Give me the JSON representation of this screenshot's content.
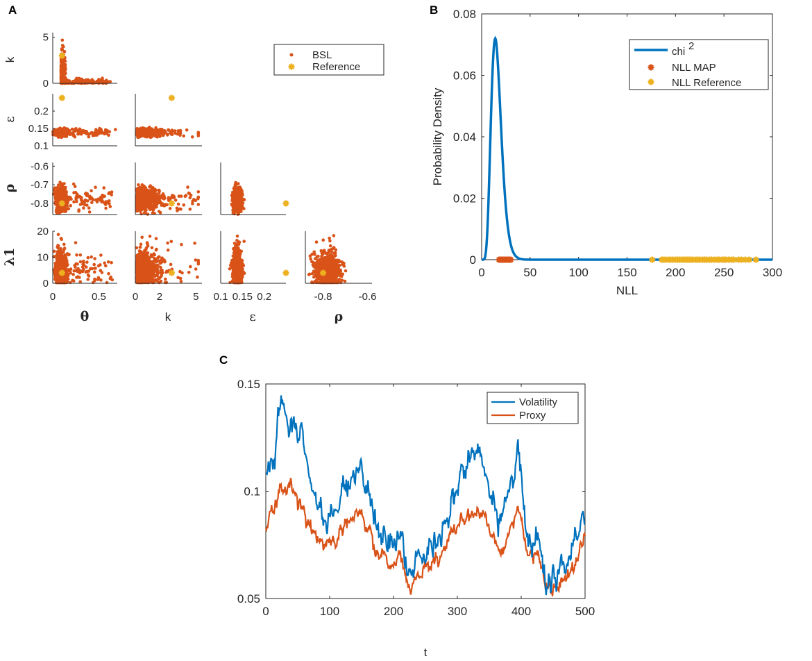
{
  "colors": {
    "blue": "#0072BD",
    "orange": "#D95319",
    "yellow": "#EDB120",
    "axis": "#262626"
  },
  "chart_data": [
    {
      "panel": "A",
      "type": "scatter",
      "title": "",
      "legend": [
        "BSL",
        "Reference"
      ],
      "legend_position": "top-right",
      "variables": [
        "θ",
        "k",
        "ε",
        "ρ",
        "λ1"
      ],
      "row_labels": [
        "k",
        "ε",
        "ρ",
        "λ1"
      ],
      "column_labels": [
        "θ",
        "k",
        "ε",
        "ρ"
      ],
      "axes": {
        "theta": {
          "range": [
            0,
            0.7
          ],
          "ticks": [
            "0",
            "0.5"
          ],
          "tick_values": [
            0,
            0.5
          ]
        },
        "k": {
          "range": [
            0,
            5.5
          ],
          "ticks": [
            "0",
            "5"
          ],
          "tick_values": [
            0,
            5
          ]
        },
        "k_x": {
          "range": [
            0,
            5.5
          ],
          "ticks": [
            "0",
            "2",
            "5"
          ],
          "tick_values": [
            0,
            2,
            5
          ]
        },
        "eps": {
          "range": [
            0.1,
            0.25
          ],
          "ticks": [
            "0.1",
            "0.15",
            "0.2"
          ],
          "tick_values": [
            0.1,
            0.15,
            0.2
          ]
        },
        "eps_x": {
          "range": [
            0.1,
            0.25
          ],
          "ticks": [
            "0.1",
            "0.15",
            "0.2"
          ],
          "tick_values": [
            0.1,
            0.15,
            0.2
          ]
        },
        "rho": {
          "range": [
            -0.86,
            -0.58
          ],
          "ticks": [
            "-0.6",
            "-0.7",
            "-0.8"
          ],
          "tick_values": [
            -0.6,
            -0.7,
            -0.8
          ]
        },
        "rho_x": {
          "range": [
            -0.88,
            -0.58
          ],
          "ticks": [
            "-0.8",
            "-0.6"
          ],
          "tick_values": [
            -0.8,
            -0.6
          ]
        },
        "lambda": {
          "range": [
            0,
            20
          ],
          "ticks": [
            "0",
            "10",
            "20"
          ],
          "tick_values": [
            0,
            10,
            20
          ]
        }
      },
      "reference": {
        "theta": 0.1,
        "k": 3,
        "eps": 0.25,
        "rho": -0.8,
        "lambda": 4
      },
      "bsl_summary": {
        "theta": {
          "center": 0.09,
          "spread": 0.15
        },
        "k": {
          "center": 0.5,
          "spread": 1.2
        },
        "eps": {
          "center": 0.138,
          "spread": 0.012
        },
        "rho": {
          "center": -0.78,
          "spread": 0.05
        },
        "lambda": {
          "center": 5,
          "spread": 4
        }
      }
    },
    {
      "panel": "B",
      "type": "line",
      "title": "",
      "xlabel": "NLL",
      "ylabel": "Probability Density",
      "xlim": [
        0,
        300
      ],
      "ylim": [
        0,
        0.08
      ],
      "xticks": [
        0,
        50,
        100,
        150,
        200,
        250,
        300
      ],
      "yticks": [
        0,
        0.02,
        0.04,
        0.06,
        0.08
      ],
      "xtick_labels": [
        "0",
        "50",
        "100",
        "150",
        "200",
        "250",
        "300"
      ],
      "ytick_labels": [
        "0",
        "0.02",
        "0.04",
        "0.06",
        "0.08"
      ],
      "legend": [
        "chi",
        "2",
        "NLL MAP",
        "NLL Reference"
      ],
      "legend_position": "top-right",
      "series": [
        {
          "name": "chi^2",
          "dof": 16,
          "peak": 0.072
        },
        {
          "name": "NLL MAP",
          "x": [
            18,
            19,
            20,
            21,
            22,
            23,
            24,
            25,
            26,
            27,
            28,
            29,
            30
          ]
        },
        {
          "name": "NLL Reference",
          "x": [
            176,
            186,
            188,
            190,
            193,
            195,
            197,
            200,
            202,
            204,
            206,
            208,
            210,
            212,
            214,
            216,
            218,
            221,
            223,
            225,
            228,
            230,
            232,
            235,
            237,
            240,
            243,
            245,
            248,
            250,
            252,
            255,
            258,
            260,
            265,
            268,
            272,
            276,
            283
          ]
        }
      ]
    },
    {
      "panel": "C",
      "type": "line",
      "title": "",
      "xlabel": "t",
      "ylabel": "",
      "xlim": [
        0,
        500
      ],
      "ylim": [
        0.05,
        0.15
      ],
      "xticks": [
        0,
        100,
        200,
        300,
        400,
        500
      ],
      "yticks": [
        0.05,
        0.1,
        0.15
      ],
      "xtick_labels": [
        "0",
        "100",
        "200",
        "300",
        "400",
        "500"
      ],
      "ytick_labels": [
        "0.05",
        "0.1",
        "0.15"
      ],
      "legend": [
        "Volatility",
        "Proxy"
      ],
      "legend_position": "top-right",
      "keyframes_t": [
        0,
        10,
        25,
        40,
        55,
        75,
        95,
        110,
        125,
        145,
        160,
        180,
        195,
        210,
        225,
        240,
        260,
        280,
        295,
        310,
        325,
        340,
        355,
        370,
        385,
        395,
        410,
        425,
        440,
        450,
        470,
        490,
        500
      ],
      "series": [
        {
          "name": "Volatility",
          "values": [
            0.106,
            0.115,
            0.142,
            0.132,
            0.125,
            0.097,
            0.085,
            0.088,
            0.105,
            0.11,
            0.1,
            0.079,
            0.072,
            0.08,
            0.06,
            0.069,
            0.071,
            0.081,
            0.102,
            0.108,
            0.12,
            0.113,
            0.095,
            0.087,
            0.108,
            0.12,
            0.08,
            0.078,
            0.06,
            0.057,
            0.067,
            0.085,
            0.09
          ]
        },
        {
          "name": "Proxy",
          "values": [
            0.085,
            0.09,
            0.103,
            0.098,
            0.093,
            0.081,
            0.074,
            0.076,
            0.085,
            0.088,
            0.082,
            0.07,
            0.066,
            0.07,
            0.054,
            0.062,
            0.066,
            0.072,
            0.083,
            0.087,
            0.091,
            0.087,
            0.078,
            0.073,
            0.085,
            0.093,
            0.07,
            0.07,
            0.057,
            0.054,
            0.06,
            0.07,
            0.077
          ]
        }
      ]
    }
  ]
}
